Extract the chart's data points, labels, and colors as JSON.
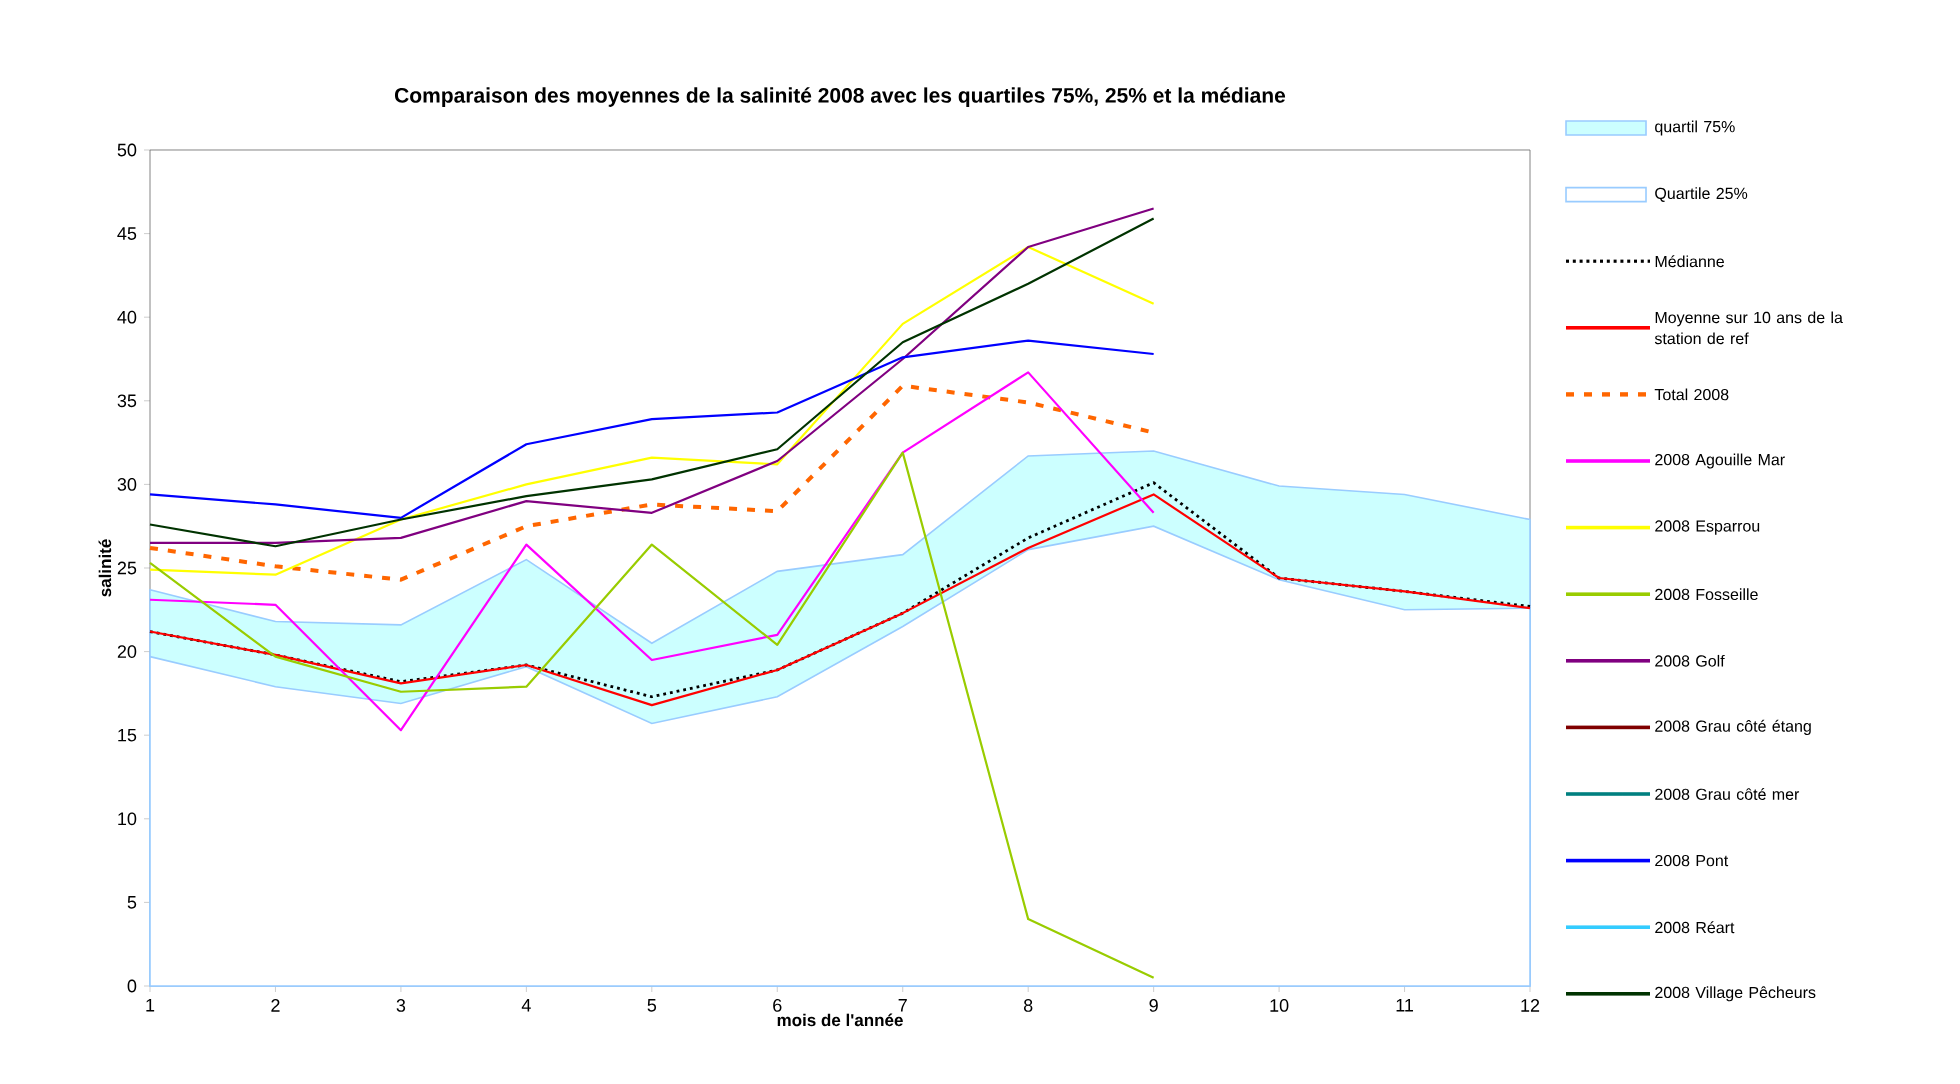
{
  "chart_data": {
    "type": "line",
    "title": "Comparaison des moyennes de la salinité 2008 avec les quartiles 75%, 25% et la médiane",
    "xlabel": "mois de l'année",
    "ylabel": "salinité",
    "x": [
      1,
      2,
      3,
      4,
      5,
      6,
      7,
      8,
      9,
      10,
      11,
      12
    ],
    "xlim": [
      1,
      12
    ],
    "xticks": [
      1,
      2,
      3,
      4,
      5,
      6,
      7,
      8,
      9,
      10,
      11,
      12
    ],
    "ylim": [
      0,
      50
    ],
    "yticks": [
      0,
      5,
      10,
      15,
      20,
      25,
      30,
      35,
      40,
      45,
      50
    ],
    "grid": false,
    "legend": "right",
    "series": [
      {
        "name": "quartil 75%",
        "type": "area",
        "color": "#ccffff",
        "values": [
          23.7,
          21.8,
          21.6,
          25.5,
          20.5,
          24.8,
          25.8,
          31.7,
          32.0,
          29.9,
          29.4,
          27.9
        ]
      },
      {
        "name": "Quartile 25%",
        "type": "area",
        "color": "#ffffff",
        "values": [
          19.7,
          17.9,
          16.9,
          19.1,
          15.7,
          17.3,
          21.5,
          26.1,
          27.5,
          24.3,
          22.5,
          22.6
        ]
      },
      {
        "name": "Médianne",
        "type": "line",
        "line_style": "dotted",
        "color": "#000000",
        "values": [
          21.2,
          19.8,
          18.2,
          19.2,
          17.3,
          18.9,
          22.3,
          26.8,
          30.1,
          24.4,
          23.6,
          22.7
        ]
      },
      {
        "name": "Moyenne sur 10 ans de la station de ref",
        "type": "line",
        "color": "#ff0000",
        "values": [
          21.2,
          19.8,
          18.1,
          19.2,
          16.8,
          18.9,
          22.3,
          26.2,
          29.4,
          24.4,
          23.6,
          22.6
        ]
      },
      {
        "name": "Total 2008",
        "type": "line",
        "line_style": "dashed",
        "color": "#ff6600",
        "values": [
          26.2,
          25.1,
          24.3,
          27.5,
          28.8,
          28.4,
          35.9,
          34.9,
          33.1,
          null,
          null,
          null
        ]
      },
      {
        "name": "2008 Agouille Mar",
        "type": "line",
        "color": "#ff00ff",
        "values": [
          23.1,
          22.8,
          15.3,
          26.4,
          19.5,
          21.0,
          31.9,
          36.7,
          28.3,
          null,
          null,
          null
        ]
      },
      {
        "name": "2008 Esparrou",
        "type": "line",
        "color": "#ffff00",
        "values": [
          24.9,
          24.6,
          27.9,
          30.0,
          31.6,
          31.2,
          39.6,
          44.2,
          40.8,
          null,
          null,
          null
        ]
      },
      {
        "name": "2008 Fosseille",
        "type": "line",
        "color": "#99cc00",
        "values": [
          25.3,
          19.7,
          17.6,
          17.9,
          26.4,
          20.4,
          31.9,
          4.0,
          0.5,
          null,
          null,
          null
        ]
      },
      {
        "name": "2008 Golf",
        "type": "line",
        "color": "#800080",
        "values": [
          26.5,
          26.5,
          26.8,
          29.0,
          28.3,
          31.4,
          37.5,
          44.2,
          46.5,
          null,
          null,
          null
        ]
      },
      {
        "name": "2008 Grau côté étang",
        "type": "line",
        "color": "#800000",
        "values": [
          null,
          null,
          null,
          null,
          null,
          null,
          null,
          null,
          null,
          null,
          null,
          null
        ]
      },
      {
        "name": "2008 Grau côté mer",
        "type": "line",
        "color": "#008080",
        "values": [
          null,
          null,
          null,
          null,
          null,
          null,
          null,
          null,
          null,
          null,
          null,
          null
        ]
      },
      {
        "name": "2008 Pont",
        "type": "line",
        "color": "#0000ff",
        "values": [
          29.4,
          28.8,
          28.0,
          32.4,
          33.9,
          34.3,
          37.6,
          38.6,
          37.8,
          null,
          null,
          null
        ]
      },
      {
        "name": "2008 Réart",
        "type": "line",
        "color": "#33ccff",
        "values": [
          null,
          null,
          null,
          null,
          null,
          null,
          null,
          null,
          null,
          null,
          null,
          null
        ]
      },
      {
        "name": "2008 Village Pêcheurs",
        "type": "line",
        "color": "#003300",
        "values": [
          27.6,
          26.3,
          27.9,
          29.3,
          30.3,
          32.1,
          38.5,
          42.0,
          45.9,
          null,
          null,
          null
        ]
      }
    ]
  }
}
